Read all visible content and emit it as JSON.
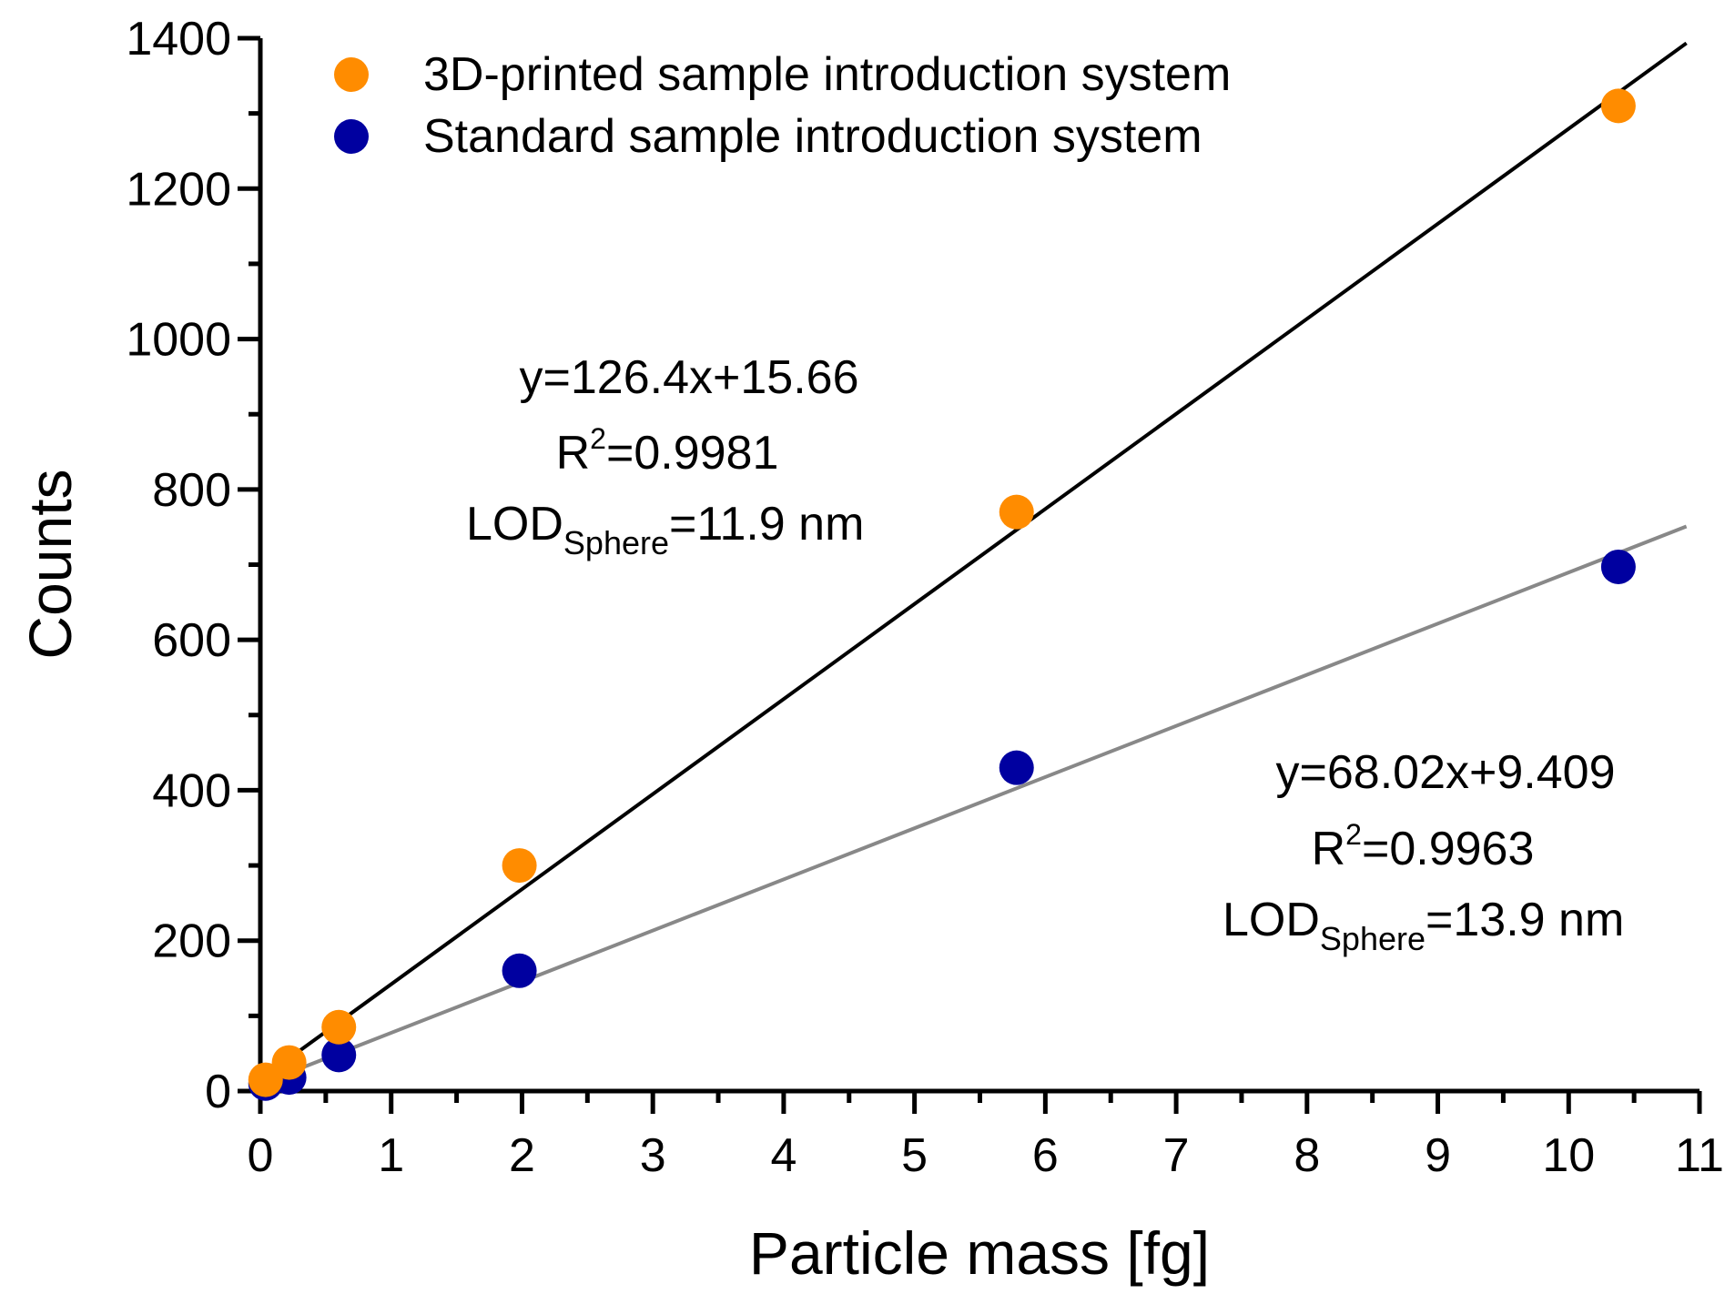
{
  "chart_data": {
    "type": "scatter",
    "xlabel": "Particle mass [fg]",
    "ylabel": "Counts",
    "xlim": [
      0,
      11
    ],
    "ylim": [
      0,
      1400
    ],
    "xticks": [
      "0",
      "1",
      "2",
      "3",
      "4",
      "5",
      "6",
      "7",
      "8",
      "9",
      "10",
      "11"
    ],
    "yticks": [
      "0",
      "200",
      "400",
      "600",
      "800",
      "1000",
      "1200",
      "1400"
    ],
    "legend_position": "top-left",
    "series": [
      {
        "name": "3D-printed sample introduction system",
        "color": "#ff8c00",
        "x": [
          0.04,
          0.22,
          0.6,
          1.98,
          5.78,
          10.38
        ],
        "y": [
          15,
          38,
          85,
          300,
          770,
          1310
        ],
        "fit": {
          "slope": 126.4,
          "intercept": 15.66,
          "color": "#000000"
        },
        "annotation": {
          "equation": "y=126.4x+15.66",
          "r2_prefix": "R",
          "r2_sup": "2",
          "r2_value": "=0.9981",
          "lod_prefix": "LOD",
          "lod_sub": "Sphere",
          "lod_value": "=11.9 nm"
        }
      },
      {
        "name": "Standard sample introduction system",
        "color": "#0000a0",
        "x": [
          0.04,
          0.22,
          0.6,
          1.98,
          5.78,
          10.38
        ],
        "y": [
          10,
          18,
          48,
          160,
          430,
          697
        ],
        "fit": {
          "slope": 68.02,
          "intercept": 9.409,
          "color": "#888888"
        },
        "annotation": {
          "equation": "y=68.02x+9.409",
          "r2_prefix": "R",
          "r2_sup": "2",
          "r2_value": "=0.9963",
          "lod_prefix": "LOD",
          "lod_sub": "Sphere",
          "lod_value": "=13.9 nm"
        }
      }
    ]
  }
}
